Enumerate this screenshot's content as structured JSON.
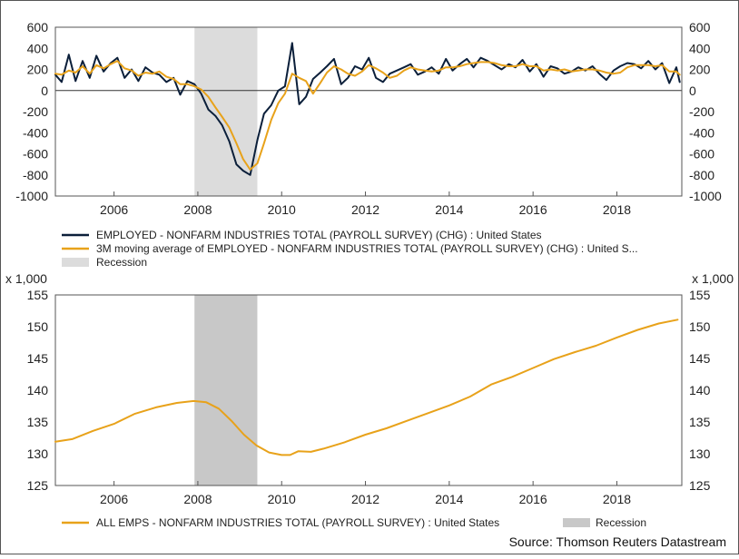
{
  "colors": {
    "employed_line": "#0b1f3a",
    "moving_avg_line": "#e8a21a",
    "recession_top": "#dcdcdc",
    "recession_bottom": "#c8c8c8",
    "frame": "#555555"
  },
  "chart_data": [
    {
      "type": "line",
      "x_ticks": [
        "2006",
        "2008",
        "2010",
        "2012",
        "2014",
        "2016",
        "2018"
      ],
      "y_ticks": [
        "600",
        "400",
        "200",
        "0",
        "-200",
        "-400",
        "-600",
        "-800",
        "-1000"
      ],
      "ylim": [
        -1000,
        600
      ],
      "xlim": [
        2004.6,
        2019.55
      ],
      "recession": {
        "start": 2007.92,
        "end": 2009.42,
        "label": "Recession"
      },
      "series": [
        {
          "name": "EMPLOYED - NONFARM INDUSTRIES TOTAL (PAYROLL SURVEY) (CHG) : United States",
          "x": [
            2004.6,
            2004.75,
            2004.92,
            2005.08,
            2005.25,
            2005.42,
            2005.58,
            2005.75,
            2005.92,
            2006.08,
            2006.25,
            2006.42,
            2006.58,
            2006.75,
            2006.92,
            2007.08,
            2007.25,
            2007.42,
            2007.58,
            2007.75,
            2007.92,
            2008.08,
            2008.25,
            2008.42,
            2008.58,
            2008.75,
            2008.92,
            2009.08,
            2009.25,
            2009.42,
            2009.58,
            2009.75,
            2009.92,
            2010.08,
            2010.25,
            2010.42,
            2010.58,
            2010.75,
            2010.92,
            2011.08,
            2011.25,
            2011.42,
            2011.58,
            2011.75,
            2011.92,
            2012.08,
            2012.25,
            2012.42,
            2012.58,
            2012.75,
            2012.92,
            2013.08,
            2013.25,
            2013.42,
            2013.58,
            2013.75,
            2013.92,
            2014.08,
            2014.25,
            2014.42,
            2014.58,
            2014.75,
            2014.92,
            2015.08,
            2015.25,
            2015.42,
            2015.58,
            2015.75,
            2015.92,
            2016.08,
            2016.25,
            2016.42,
            2016.58,
            2016.75,
            2016.92,
            2017.08,
            2017.25,
            2017.42,
            2017.58,
            2017.75,
            2017.92,
            2018.08,
            2018.25,
            2018.42,
            2018.58,
            2018.75,
            2018.92,
            2019.08,
            2019.25,
            2019.42,
            2019.5
          ],
          "values": [
            150,
            80,
            340,
            90,
            280,
            120,
            330,
            180,
            260,
            310,
            120,
            200,
            90,
            220,
            170,
            150,
            80,
            120,
            -40,
            90,
            60,
            -30,
            -180,
            -240,
            -330,
            -480,
            -700,
            -760,
            -800,
            -470,
            -220,
            -140,
            0,
            40,
            450,
            -130,
            -60,
            110,
            170,
            230,
            300,
            60,
            120,
            230,
            200,
            310,
            120,
            80,
            160,
            190,
            220,
            250,
            150,
            180,
            220,
            160,
            300,
            190,
            250,
            300,
            220,
            310,
            280,
            240,
            200,
            250,
            220,
            290,
            180,
            250,
            130,
            230,
            210,
            160,
            180,
            220,
            190,
            230,
            160,
            100,
            190,
            230,
            260,
            250,
            210,
            280,
            200,
            260,
            70,
            220,
            80
          ]
        },
        {
          "name": "3M moving average of EMPLOYED - NONFARM INDUSTRIES TOTAL (PAYROLL SURVEY) (CHG) : United S...",
          "x": [
            2004.6,
            2004.75,
            2004.92,
            2005.08,
            2005.25,
            2005.42,
            2005.58,
            2005.75,
            2005.92,
            2006.08,
            2006.25,
            2006.42,
            2006.58,
            2006.75,
            2006.92,
            2007.08,
            2007.25,
            2007.42,
            2007.58,
            2007.75,
            2007.92,
            2008.08,
            2008.25,
            2008.42,
            2008.58,
            2008.75,
            2008.92,
            2009.08,
            2009.25,
            2009.42,
            2009.58,
            2009.75,
            2009.92,
            2010.08,
            2010.25,
            2010.42,
            2010.58,
            2010.75,
            2010.92,
            2011.08,
            2011.25,
            2011.42,
            2011.58,
            2011.75,
            2011.92,
            2012.08,
            2012.25,
            2012.42,
            2012.58,
            2012.75,
            2012.92,
            2013.08,
            2013.25,
            2013.42,
            2013.58,
            2013.75,
            2013.92,
            2014.08,
            2014.25,
            2014.42,
            2014.58,
            2014.75,
            2014.92,
            2015.08,
            2015.25,
            2015.42,
            2015.58,
            2015.75,
            2015.92,
            2016.08,
            2016.25,
            2016.42,
            2016.58,
            2016.75,
            2016.92,
            2017.08,
            2017.25,
            2017.42,
            2017.58,
            2017.75,
            2017.92,
            2018.08,
            2018.25,
            2018.42,
            2018.58,
            2018.75,
            2018.92,
            2019.08,
            2019.25,
            2019.42,
            2019.5
          ],
          "values": [
            160,
            150,
            190,
            170,
            230,
            160,
            240,
            210,
            250,
            280,
            210,
            190,
            140,
            170,
            160,
            180,
            130,
            110,
            60,
            60,
            40,
            10,
            -60,
            -160,
            -250,
            -350,
            -500,
            -650,
            -750,
            -690,
            -500,
            -280,
            -120,
            -30,
            160,
            120,
            90,
            -30,
            70,
            170,
            230,
            200,
            160,
            140,
            180,
            240,
            210,
            170,
            120,
            140,
            190,
            220,
            200,
            190,
            180,
            190,
            220,
            220,
            230,
            250,
            260,
            270,
            270,
            260,
            240,
            230,
            230,
            250,
            230,
            230,
            190,
            200,
            190,
            200,
            180,
            190,
            200,
            200,
            190,
            170,
            160,
            170,
            220,
            240,
            240,
            240,
            230,
            240,
            180,
            180,
            150
          ]
        }
      ]
    },
    {
      "type": "line",
      "unit_label_left": "x 1,000",
      "unit_label_right": "x 1,000",
      "x_ticks": [
        "2006",
        "2008",
        "2010",
        "2012",
        "2014",
        "2016",
        "2018"
      ],
      "y_ticks": [
        "155",
        "150",
        "145",
        "140",
        "135",
        "130",
        "125"
      ],
      "ylim": [
        125,
        155
      ],
      "xlim": [
        2004.6,
        2019.55
      ],
      "recession": {
        "start": 2007.92,
        "end": 2009.42,
        "label": "Recession"
      },
      "series": [
        {
          "name": "ALL EMPS - NONFARM INDUSTRIES TOTAL (PAYROLL SURVEY) : United States",
          "x": [
            2004.6,
            2005.0,
            2005.5,
            2006.0,
            2006.5,
            2007.0,
            2007.5,
            2007.9,
            2008.2,
            2008.5,
            2008.8,
            2009.1,
            2009.4,
            2009.7,
            2010.0,
            2010.2,
            2010.4,
            2010.7,
            2011.0,
            2011.5,
            2012.0,
            2012.5,
            2013.0,
            2013.5,
            2014.0,
            2014.5,
            2015.0,
            2015.5,
            2016.0,
            2016.5,
            2017.0,
            2017.5,
            2018.0,
            2018.5,
            2019.0,
            2019.45
          ],
          "values": [
            131.9,
            132.3,
            133.6,
            134.7,
            136.3,
            137.3,
            138.0,
            138.3,
            138.1,
            137.1,
            135.2,
            133.0,
            131.3,
            130.2,
            129.8,
            129.8,
            130.4,
            130.3,
            130.8,
            131.8,
            133.0,
            134.0,
            135.2,
            136.4,
            137.6,
            139.0,
            140.9,
            142.1,
            143.5,
            144.9,
            146.0,
            147.0,
            148.3,
            149.5,
            150.5,
            151.1
          ]
        }
      ]
    }
  ],
  "legend_top": [
    {
      "label": "EMPLOYED - NONFARM INDUSTRIES TOTAL (PAYROLL SURVEY) (CHG) : United States"
    },
    {
      "label": "3M moving average of EMPLOYED - NONFARM INDUSTRIES TOTAL (PAYROLL SURVEY) (CHG) : United S..."
    },
    {
      "label": "Recession"
    }
  ],
  "legend_bottom": [
    {
      "label": "ALL EMPS - NONFARM INDUSTRIES TOTAL (PAYROLL SURVEY) : United States"
    },
    {
      "label": "Recession"
    }
  ],
  "source": "Source: Thomson Reuters Datastream"
}
